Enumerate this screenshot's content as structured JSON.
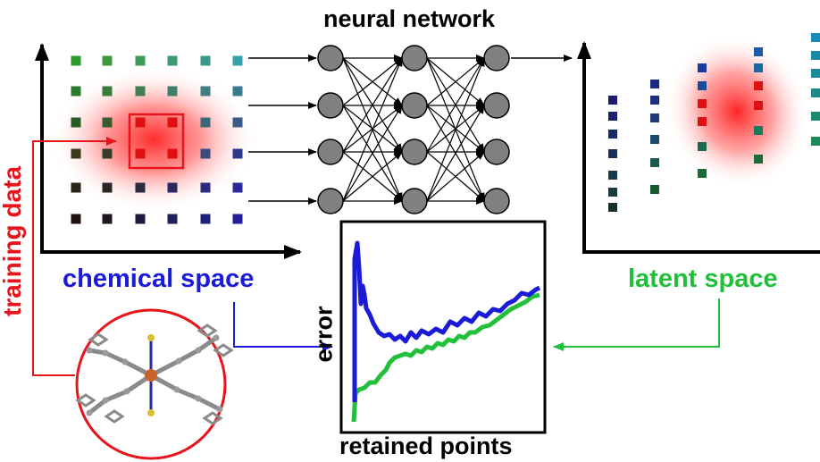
{
  "title": "neural network",
  "labels": {
    "training_data": "training data",
    "chemical_space": "chemical space",
    "latent_space": "latent space",
    "error": "error",
    "retained_points": "retained points"
  },
  "colors": {
    "training": "#e8141c",
    "chemical": "#1a1ad8",
    "latent": "#22c03a",
    "axis": "#000000",
    "node": "#808080"
  },
  "icons": {
    "molecule": "molecule-structure-icon"
  }
}
